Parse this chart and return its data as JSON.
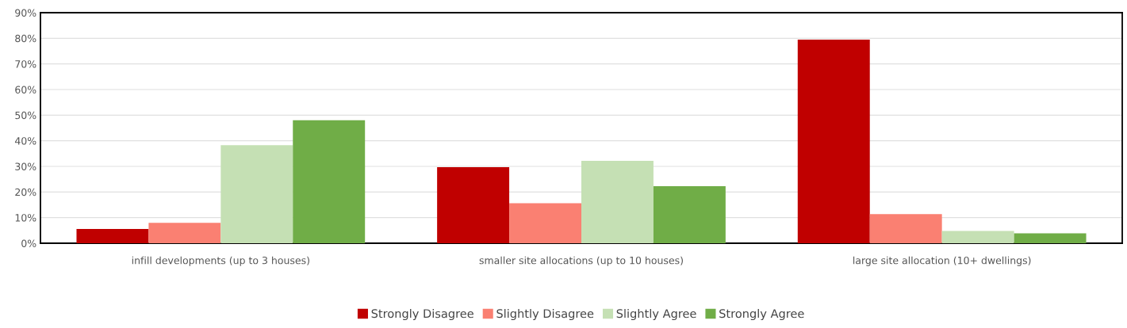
{
  "chart_data": {
    "type": "bar",
    "categories": [
      "infill developments (up to 3 houses)",
      "smaller site allocations (up to 10 houses)",
      "large site allocation (10+ dwellings)"
    ],
    "series": [
      {
        "name": "Strongly Disagree",
        "color": "#c00000",
        "values": [
          5.6,
          29.7,
          79.5
        ]
      },
      {
        "name": "Slightly Disagree",
        "color": "#fa8072",
        "values": [
          8.0,
          15.6,
          11.4
        ]
      },
      {
        "name": "Slightly Agree",
        "color": "#c5e0b4",
        "values": [
          38.3,
          32.2,
          4.8
        ]
      },
      {
        "name": "Strongly Agree",
        "color": "#70ad47",
        "values": [
          48.0,
          22.3,
          3.9
        ]
      }
    ],
    "ylim": [
      0,
      90
    ],
    "yticks": [
      {
        "value": 0,
        "label": "0%"
      },
      {
        "value": 10,
        "label": "10%"
      },
      {
        "value": 20,
        "label": "20%"
      },
      {
        "value": 30,
        "label": "30%"
      },
      {
        "value": 40,
        "label": "40%"
      },
      {
        "value": 50,
        "label": "50%"
      },
      {
        "value": 60,
        "label": "60%"
      },
      {
        "value": 70,
        "label": "70%"
      },
      {
        "value": 80,
        "label": "80%"
      },
      {
        "value": 90,
        "label": "90%"
      }
    ],
    "grid": "y",
    "legend": "bottom"
  }
}
